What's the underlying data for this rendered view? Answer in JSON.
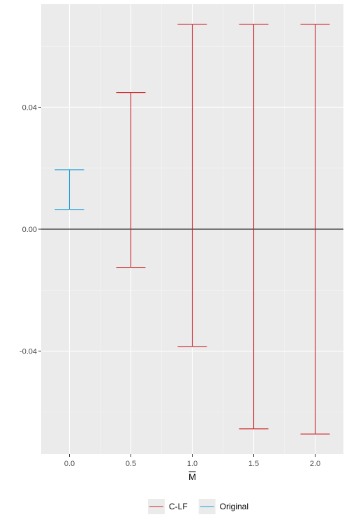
{
  "chart_data": {
    "type": "errorbar",
    "title": "",
    "xlabel": "M",
    "xlabel_overline": true,
    "ylabel": "",
    "x_ticks": [
      "0.0",
      "0.5",
      "1.0",
      "1.5",
      "2.0"
    ],
    "y_ticks": [
      "-0.04",
      "0.00",
      "0.04"
    ],
    "xlim": [
      -0.23,
      2.23
    ],
    "ylim": [
      -0.0738,
      0.0738
    ],
    "grid": true,
    "reference_line_y": 0,
    "legend_position": "bottom",
    "series": [
      {
        "name": "C-LF",
        "color": "#cc1f24",
        "points": [
          {
            "x": 0.5,
            "lower": -0.0125,
            "upper": 0.0448
          },
          {
            "x": 1.0,
            "lower": -0.0385,
            "upper": 0.0672
          },
          {
            "x": 1.5,
            "lower": -0.0655,
            "upper": 0.0672
          },
          {
            "x": 2.0,
            "lower": -0.0672,
            "upper": 0.0672
          }
        ]
      },
      {
        "name": "Original",
        "color": "#1a9bd7",
        "points": [
          {
            "x": 0.0,
            "lower": 0.0065,
            "upper": 0.0195
          }
        ]
      }
    ]
  }
}
